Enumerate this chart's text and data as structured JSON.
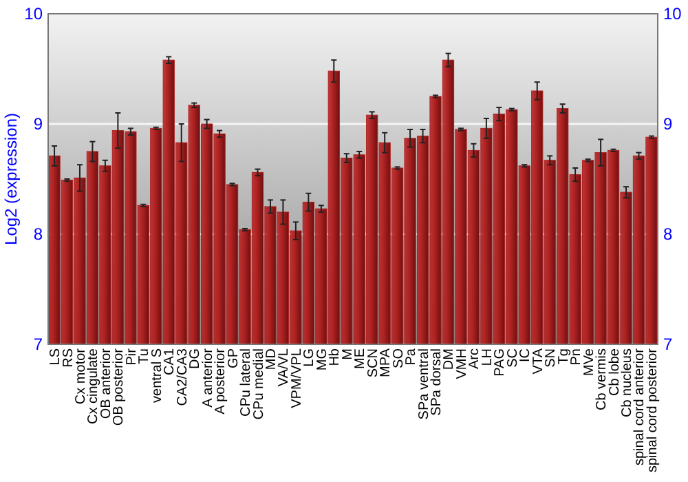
{
  "chart_data": {
    "type": "bar",
    "ylabel": "Log2 (expression)",
    "categories": [
      "LS",
      "RS",
      "Cx motor",
      "Cx cingulate",
      "OB anterior",
      "OB posterior",
      "Pir",
      "Tu",
      "ventral S",
      "CA1",
      "CA2/CA3",
      "DG",
      "A anterior",
      "A posterior",
      "GP",
      "CPu lateral",
      "CPu medial",
      "MD",
      "VA/VL",
      "VPM/VPL",
      "LG",
      "MG",
      "Hb",
      "M",
      "ME",
      "SCN",
      "MPA",
      "SO",
      "Pa",
      "SPa ventral",
      "SPa dorsal",
      "DM",
      "VMH",
      "Arc",
      "LH",
      "PAG",
      "SC",
      "IC",
      "VTA",
      "SN",
      "Tg",
      "Pn",
      "MVe",
      "Cb vermis",
      "Cb lobe",
      "Cb nucleus",
      "spinal cord anterior",
      "spinal cord posterior"
    ],
    "values": [
      8.71,
      8.49,
      8.51,
      8.75,
      8.62,
      8.94,
      8.93,
      8.26,
      8.96,
      9.58,
      8.83,
      9.17,
      9.0,
      8.91,
      8.45,
      8.04,
      8.56,
      8.25,
      8.2,
      8.03,
      8.29,
      8.23,
      9.48,
      8.69,
      8.72,
      9.08,
      8.83,
      8.6,
      8.87,
      8.89,
      9.25,
      9.58,
      8.95,
      8.76,
      8.96,
      9.09,
      9.13,
      8.62,
      9.3,
      8.67,
      9.14,
      8.54,
      8.67,
      8.74,
      8.76,
      8.38,
      8.71,
      8.88
    ],
    "errors": [
      0.09,
      0.01,
      0.12,
      0.09,
      0.05,
      0.16,
      0.03,
      0.01,
      0.01,
      0.03,
      0.17,
      0.02,
      0.04,
      0.03,
      0.01,
      0.01,
      0.03,
      0.06,
      0.11,
      0.08,
      0.08,
      0.03,
      0.1,
      0.04,
      0.03,
      0.03,
      0.09,
      0.01,
      0.08,
      0.06,
      0.01,
      0.06,
      0.01,
      0.06,
      0.09,
      0.06,
      0.01,
      0.01,
      0.08,
      0.04,
      0.04,
      0.06,
      0.01,
      0.12,
      0.01,
      0.05,
      0.03,
      0.01
    ],
    "color": "#b22222",
    "ylim": [
      7,
      10
    ],
    "yticks": [
      7,
      8,
      9,
      10
    ],
    "y2lim": [
      7,
      10
    ],
    "y2ticks": [
      7,
      8,
      9,
      10
    ],
    "grid": "y"
  }
}
